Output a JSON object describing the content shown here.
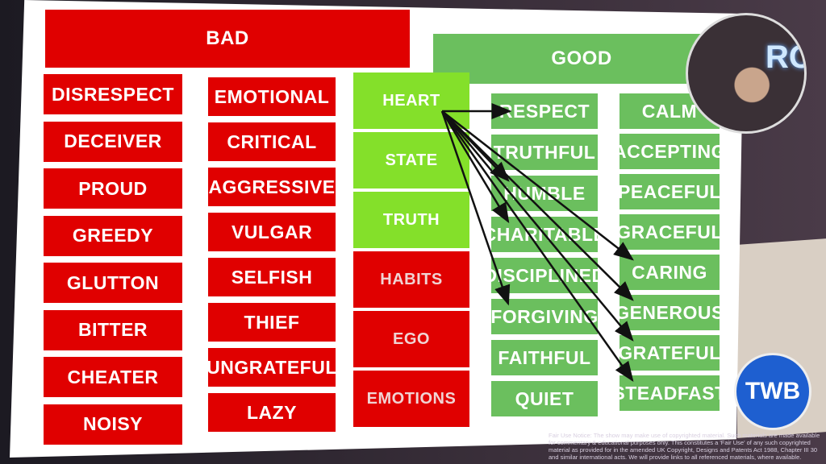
{
  "headers": {
    "bad": "BAD",
    "good": "GOOD"
  },
  "bad_col1": [
    "DISRESPECT",
    "DECEIVER",
    "PROUD",
    "GREEDY",
    "GLUTTON",
    "BITTER",
    "CHEATER",
    "NOISY"
  ],
  "bad_col2": [
    "EMOTIONAL",
    "CRITICAL",
    "AGGRESSIVE",
    "VULGAR",
    "SELFISH",
    "THIEF",
    "UNGRATEFUL",
    "LAZY"
  ],
  "center": [
    {
      "label": "HEART",
      "color": "#84e02a"
    },
    {
      "label": "STATE",
      "color": "#84e02a"
    },
    {
      "label": "TRUTH",
      "color": "#84e02a"
    },
    {
      "label": "HABITS",
      "color": "#e00000"
    },
    {
      "label": "EGO",
      "color": "#e00000"
    },
    {
      "label": "EMOTIONS",
      "color": "#e00000"
    }
  ],
  "good_col1": [
    "RESPECT",
    "TRUTHFUL",
    "HUMBLE",
    "CHARITABLE",
    "DISCIPLINED",
    "FORGIVING",
    "FAITHFUL",
    "QUIET"
  ],
  "good_col2": [
    "CALM",
    "ACCEPTING",
    "PEACEFUL",
    "GRACEFUL",
    "CARING",
    "GENEROUS",
    "GRATEFUL",
    "STEADFAST"
  ],
  "arrows": {
    "from": "HEART",
    "to": [
      "RESPECT",
      "HUMBLE",
      "CHARITABLE",
      "FORGIVING",
      "CARING",
      "GENEROUS",
      "GRATEFUL",
      "STEADFAST"
    ]
  },
  "colors": {
    "bad": "#e00000",
    "good": "#6bbf5e",
    "core": "#84e02a"
  },
  "logo": "TWB",
  "webcam_neon": "RO",
  "notice": "Fair Use Notice: The show may make use of copyrighted material. Such materials are made available for commentary & educational purposes only. This constitutes a 'Fair Use' of any such copyrighted material as provided for in the amended UK Copyright, Designs and Patents Act 1988, Chapter III 30 and similar international acts. We will provide links to all referenced materials, where available."
}
